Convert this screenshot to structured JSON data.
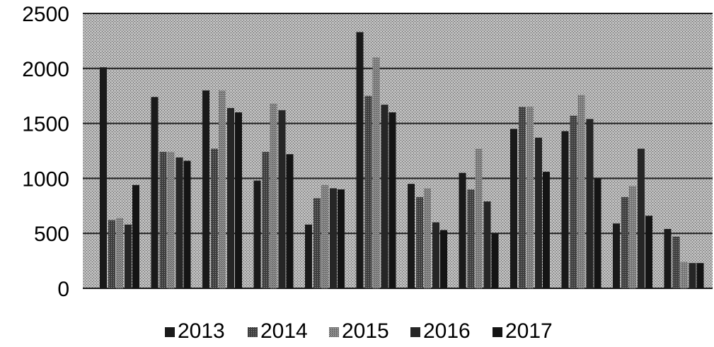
{
  "chart_data": {
    "type": "bar",
    "title": "",
    "xlabel": "",
    "ylabel": "",
    "ylim": [
      0,
      2500
    ],
    "yticks": [
      0,
      500,
      1000,
      1500,
      2000,
      2500
    ],
    "categories": [
      "",
      "",
      "",
      "",
      "",
      "",
      "",
      "",
      "",
      "",
      "",
      ""
    ],
    "grid": true,
    "legend_position": "bottom",
    "series": [
      {
        "name": "2013",
        "color": "#1a1a1a",
        "pattern": "solid",
        "values": [
          2010,
          1740,
          1800,
          980,
          580,
          2330,
          950,
          1050,
          1450,
          1430,
          590,
          540
        ]
      },
      {
        "name": "2014",
        "color": "#4d4d4d",
        "pattern": "dither-dark",
        "values": [
          620,
          1240,
          1270,
          1240,
          820,
          1750,
          830,
          900,
          1650,
          1570,
          830,
          470
        ]
      },
      {
        "name": "2015",
        "color": "#8a8a8a",
        "pattern": "dither-light",
        "values": [
          640,
          1240,
          1800,
          1680,
          940,
          2100,
          910,
          1270,
          1650,
          1760,
          930,
          240
        ]
      },
      {
        "name": "2016",
        "color": "#262626",
        "pattern": "solid",
        "values": [
          580,
          1190,
          1640,
          1620,
          910,
          1670,
          600,
          790,
          1370,
          1540,
          1270,
          230
        ]
      },
      {
        "name": "2017",
        "color": "#141414",
        "pattern": "solid",
        "values": [
          940,
          1160,
          1600,
          1220,
          900,
          1600,
          530,
          500,
          1060,
          1000,
          660,
          230
        ]
      }
    ]
  }
}
